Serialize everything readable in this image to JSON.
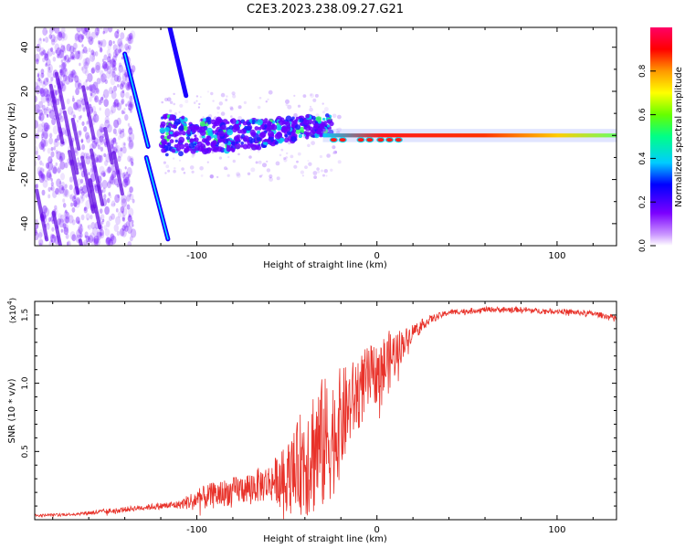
{
  "figure_title": "C2E3.2023.238.09.27.G21",
  "colors": {
    "snr_line": "#e8322a",
    "strong_track": "#ff1a1a",
    "spectrogram_scatter": "#7a1fff"
  },
  "chart_data": [
    {
      "type": "heatmap",
      "title": "",
      "xlabel": "Height of straight line (km)",
      "ylabel": "Frequency (Hz)",
      "xlim": [
        -190,
        133
      ],
      "ylim": [
        -50,
        49
      ],
      "x_ticks": [
        -100,
        0,
        100
      ],
      "x_tick_labels": [
        "-100",
        "0",
        "100"
      ],
      "y_ticks": [
        -40,
        -20,
        0,
        20,
        40
      ],
      "y_tick_labels": [
        "-40",
        "-20",
        "0",
        "20",
        "40"
      ],
      "colorbar": {
        "label": "Normalized spectral amplitude",
        "range": [
          0,
          1
        ],
        "ticks": [
          0,
          0.2,
          0.4,
          0.6,
          0.8
        ],
        "tick_labels": [
          "0.0",
          "0.2",
          "0.4",
          "0.6",
          "0.8"
        ],
        "colormap": [
          "#ffffff",
          "#cc99ff",
          "#7b00ff",
          "#0000ff",
          "#00ccff",
          "#00ff88",
          "#66ff00",
          "#ffff00",
          "#ff9900",
          "#ff0000",
          "#ff0066"
        ]
      },
      "features": {
        "carrier_track": {
          "x_start": -120,
          "x_end": 133,
          "frequency": 0
        },
        "diagonal_tracks": [
          {
            "x": [
              -140,
              -127
            ],
            "y": [
              37,
              -5
            ]
          },
          {
            "x": [
              -128,
              -116
            ],
            "y": [
              -10,
              -47
            ]
          },
          {
            "x": [
              -115,
              -106
            ],
            "y": [
              49,
              18
            ]
          }
        ],
        "noisy_band": {
          "x": [
            -190,
            -135
          ],
          "y": [
            -50,
            49
          ]
        }
      }
    },
    {
      "type": "line",
      "title": "",
      "xlabel": "Height of straight line (km)",
      "ylabel": "SNR (10 * v/v)",
      "y_scale_label_base": "(x10",
      "y_scale_label_exp": "4",
      "y_scale_label_close": ")",
      "xlim": [
        -190,
        133
      ],
      "ylim": [
        0,
        1.6
      ],
      "x_ticks": [
        -100,
        0,
        100
      ],
      "x_tick_labels": [
        "-100",
        "0",
        "100"
      ],
      "y_ticks": [
        0.5,
        1.0,
        1.5
      ],
      "y_tick_labels": [
        "0.5",
        "1.0",
        "1.5"
      ],
      "series": [
        {
          "x": [
            -190,
            -170,
            -150,
            -130,
            -110,
            -100,
            -90,
            -80,
            -70,
            -60,
            -50,
            -45,
            -40,
            -35,
            -30,
            -25,
            -20,
            -15,
            -10,
            -5,
            0,
            5,
            10,
            15,
            20,
            25,
            30,
            40,
            50,
            60,
            70,
            80,
            90,
            100,
            110,
            120,
            133
          ],
          "values": [
            0.03,
            0.04,
            0.06,
            0.09,
            0.11,
            0.15,
            0.18,
            0.21,
            0.24,
            0.27,
            0.33,
            0.38,
            0.45,
            0.52,
            0.55,
            0.6,
            0.72,
            0.84,
            0.94,
            1.02,
            1.08,
            1.13,
            1.22,
            1.3,
            1.38,
            1.43,
            1.47,
            1.52,
            1.53,
            1.54,
            1.54,
            1.54,
            1.53,
            1.53,
            1.52,
            1.51,
            1.48
          ],
          "noise_amplitude": [
            0.01,
            0.01,
            0.02,
            0.02,
            0.03,
            0.08,
            0.1,
            0.1,
            0.12,
            0.14,
            0.22,
            0.3,
            0.45,
            0.5,
            0.5,
            0.45,
            0.4,
            0.3,
            0.28,
            0.25,
            0.22,
            0.25,
            0.18,
            0.1,
            0.06,
            0.04,
            0.03,
            0.02,
            0.02,
            0.02,
            0.02,
            0.02,
            0.02,
            0.02,
            0.02,
            0.02,
            0.02
          ]
        }
      ]
    }
  ]
}
